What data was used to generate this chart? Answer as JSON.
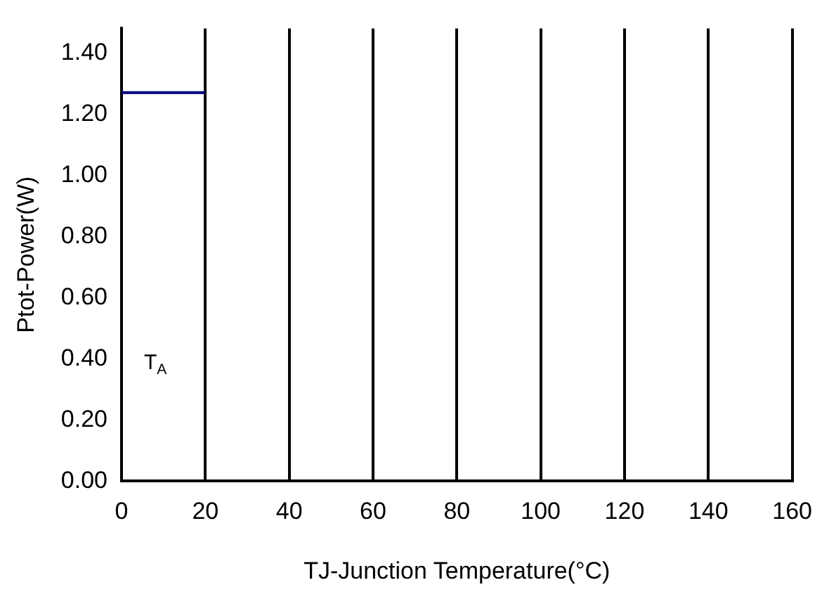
{
  "chart_data": {
    "type": "line",
    "xlabel": "TJ-Junction Temperature(°C)",
    "ylabel": "Ptot-Power(W)",
    "series": [
      {
        "color": "#000080",
        "x": [
          0,
          20
        ],
        "values": [
          1.27,
          1.27
        ]
      }
    ],
    "xlim": [
      0,
      160
    ],
    "xticks": [
      0,
      20,
      40,
      60,
      80,
      100,
      120,
      140,
      160
    ],
    "ylim": [
      0,
      1.48
    ],
    "yticks": [
      {
        "value": 0,
        "label": "0.00"
      },
      {
        "value": 0.2,
        "label": "0.20"
      },
      {
        "value": 0.4,
        "label": "0.40"
      },
      {
        "value": 0.6,
        "label": "0.60"
      },
      {
        "value": 0.8,
        "label": "0.80"
      },
      {
        "value": 1.0,
        "label": "1.00"
      },
      {
        "value": 1.2,
        "label": "1.20"
      },
      {
        "value": 1.4,
        "label": "1.40"
      }
    ],
    "grid": "x",
    "legend": false,
    "marker": "none",
    "line_style": "solid",
    "annotations": [
      "T$_{A}$"
    ]
  }
}
